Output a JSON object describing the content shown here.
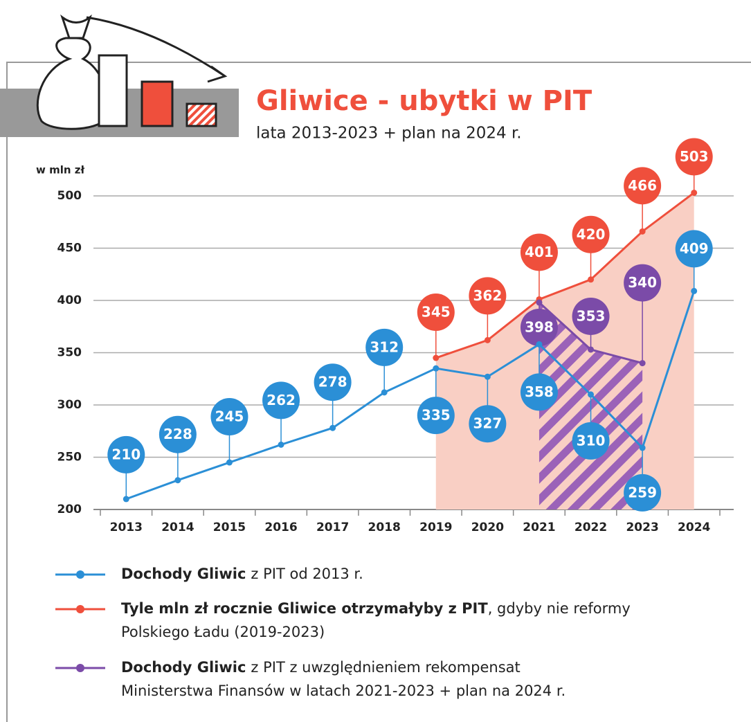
{
  "chart_data": {
    "type": "line",
    "title": "Gliwice - ubytki w PIT",
    "subtitle": "lata 2013-2023 + plan na 2024 r.",
    "y_axis_label": "w mln zł",
    "categories": [
      "2013",
      "2014",
      "2015",
      "2016",
      "2017",
      "2018",
      "2019",
      "2020",
      "2021",
      "2022",
      "2023",
      "2024"
    ],
    "ylim": [
      200,
      500
    ],
    "yticks": [
      200,
      250,
      300,
      350,
      400,
      450,
      500
    ],
    "grid": true,
    "series": [
      {
        "name": "Dochody Gliwic",
        "legend_text": [
          "z PIT od 2013 r."
        ],
        "color": "#2b8fd6",
        "values": [
          210,
          228,
          245,
          262,
          278,
          312,
          335,
          327,
          358,
          310,
          259,
          409
        ]
      },
      {
        "name": "Tyle mln zł rocznie Gliwice otrzymałyby z PIT",
        "legend_text": [
          ", gdyby nie reformy",
          "Polskiego Ładu (2019-2023)"
        ],
        "color": "#ef4f3c",
        "area_color": "#f9cfc4",
        "values": [
          null,
          null,
          null,
          null,
          null,
          null,
          345,
          362,
          401,
          420,
          466,
          503
        ]
      },
      {
        "name": "Dochody Gliwic",
        "legend_text": [
          "z PIT z uwzględnieniem rekompensat",
          "Ministerstwa Finansów w latach 2021-2023 + plan na 2024 r."
        ],
        "color": "#7b4ba8",
        "values": [
          null,
          null,
          null,
          null,
          null,
          null,
          null,
          null,
          398,
          353,
          340,
          null
        ]
      }
    ]
  }
}
